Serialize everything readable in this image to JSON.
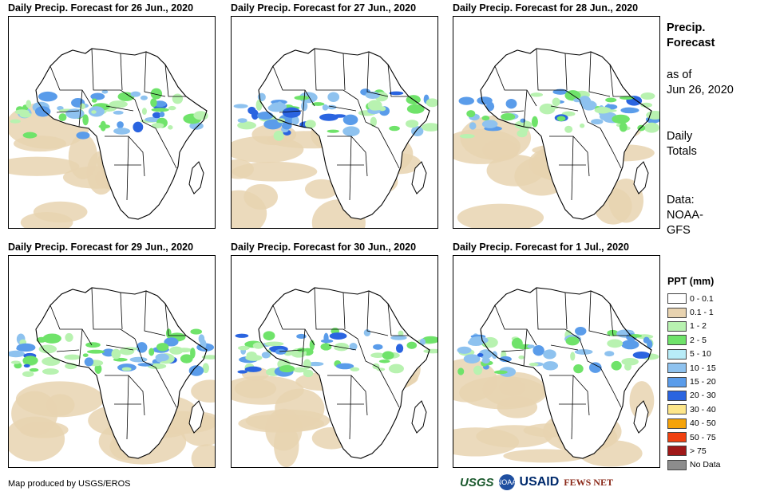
{
  "panels": [
    {
      "title": "Daily Precip. Forecast for 26 Jun., 2020"
    },
    {
      "title": "Daily Precip. Forecast for 27 Jun., 2020"
    },
    {
      "title": "Daily Precip. Forecast for 28 Jun., 2020"
    },
    {
      "title": "Daily Precip. Forecast for 29 Jun., 2020"
    },
    {
      "title": "Daily Precip. Forecast for 30 Jun., 2020"
    },
    {
      "title": "Daily Precip. Forecast for 1 Jul., 2020"
    }
  ],
  "side": {
    "title_line1": "Precip.",
    "title_line2": "Forecast",
    "asof_line1": "as of",
    "asof_line2": "Jun 26, 2020",
    "totals_line1": "Daily",
    "totals_line2": "Totals",
    "data_line1": "Data:",
    "data_line2": "NOAA-",
    "data_line3": "GFS"
  },
  "legend": {
    "title": "PPT (mm)",
    "items": [
      {
        "label": "0 - 0.1",
        "color": "#ffffff"
      },
      {
        "label": "0.1 - 1",
        "color": "#e8d3b0"
      },
      {
        "label": "1 - 2",
        "color": "#b8f2b0"
      },
      {
        "label": "2 - 5",
        "color": "#6fe36a"
      },
      {
        "label": "5 - 10",
        "color": "#b8ecf8"
      },
      {
        "label": "10 - 15",
        "color": "#8ec2ef"
      },
      {
        "label": "15 - 20",
        "color": "#5a9cea"
      },
      {
        "label": "20 - 30",
        "color": "#2a64e0"
      },
      {
        "label": "30 - 40",
        "color": "#fde68a"
      },
      {
        "label": "40 - 50",
        "color": "#f5a30a"
      },
      {
        "label": "50 - 75",
        "color": "#f04010"
      },
      {
        "label": "> 75",
        "color": "#a01818"
      },
      {
        "label": "No Data",
        "color": "#8c8c8c"
      }
    ]
  },
  "footer": "Map produced by USGS/EROS",
  "logos": {
    "usgs": "USGS",
    "noaa": "NOAA",
    "usaid": "USAID",
    "fews": "FEWS NET"
  }
}
